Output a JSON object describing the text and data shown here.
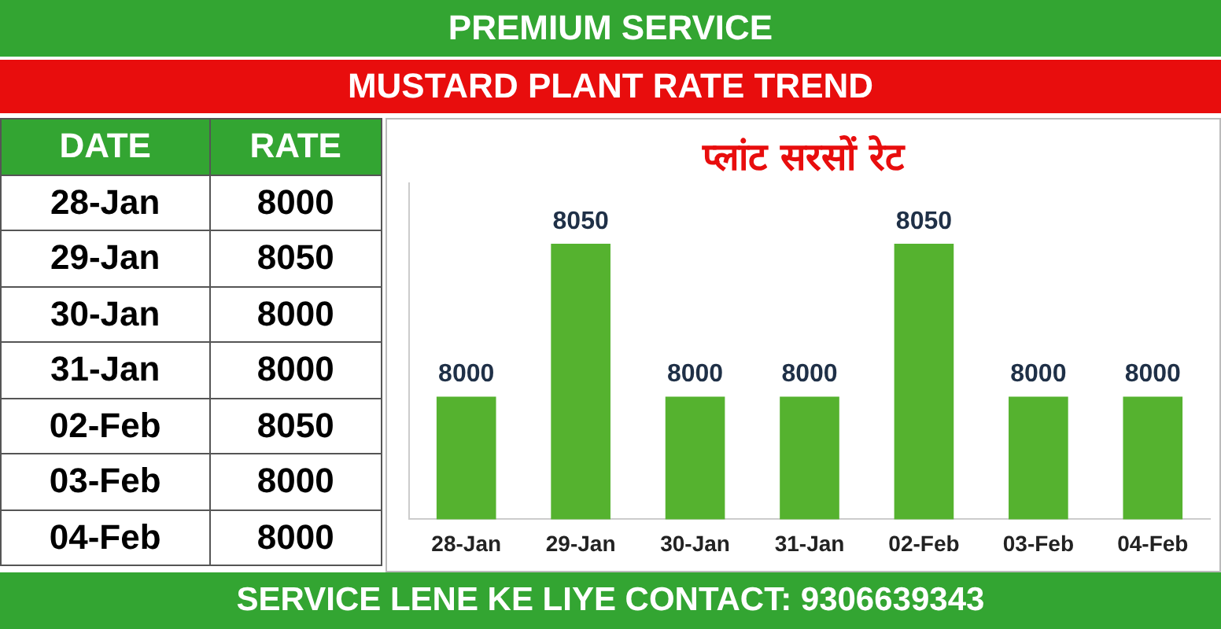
{
  "chart_data": [
    {
      "type": "other",
      "annotations": [
        "DATE",
        "RATE",
        "28-Jan",
        "8000",
        "29-Jan",
        "8050",
        "30-Jan",
        "8000",
        "31-Jan",
        "8000",
        "02-Feb",
        "8050",
        "03-Feb",
        "8000",
        "04-Feb",
        "8000"
      ]
    },
    {
      "type": "bar",
      "title": "MUSTARD PLANT RATE TREND",
      "subtitle": "प्लांट सरसों रेट",
      "annotations": [
        "PREMIUM SERVICE",
        "SERVICE LENE KE LIYE CONTACT: 9306639343"
      ],
      "categories": [
        "28-Jan",
        "29-Jan",
        "30-Jan",
        "31-Jan",
        "02-Feb",
        "03-Feb",
        "04-Feb"
      ],
      "values": [
        8000,
        8050,
        8000,
        8000,
        8050,
        8000,
        8000
      ],
      "color": "#55b22f",
      "ylim": [
        7960,
        8070
      ],
      "tick_labels": "x",
      "data_labels": true,
      "grid": false,
      "legend": false
    }
  ]
}
